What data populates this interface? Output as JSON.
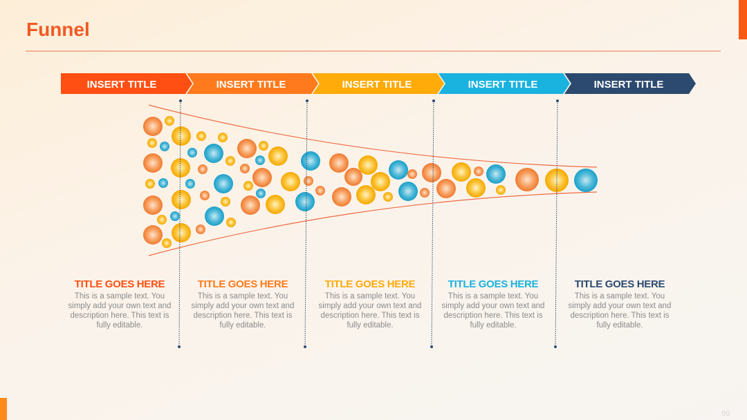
{
  "header": {
    "title": "Funnel"
  },
  "steps": [
    {
      "label": "INSERT TITLE",
      "color": "#ff4f12"
    },
    {
      "label": "INSERT TITLE",
      "color": "#ff7a1c"
    },
    {
      "label": "INSERT TITLE",
      "color": "#ffab0a"
    },
    {
      "label": "INSERT TITLE",
      "color": "#1ab2df"
    },
    {
      "label": "INSERT TITLE",
      "color": "#2c4a6f"
    }
  ],
  "columns": [
    {
      "title": "TITLE GOES HERE",
      "text": "This is a sample text. You simply add your own text and description here. This text is fully editable."
    },
    {
      "title": "TITLE GOES HERE",
      "text": "This is a sample text. You simply add your own text and description here. This text is fully editable."
    },
    {
      "title": "TITLE GOES HERE",
      "text": "This is a sample text. You simply add your own text and description here. This text is fully editable."
    },
    {
      "title": "TITLE GOES HERE",
      "text": "This is a sample text. You simply add your own text and description here. This text is fully editable."
    },
    {
      "title": "TITLE GOES HERE",
      "text": "This is a sample text. You simply add your own text and description here. This text is fully editable."
    }
  ],
  "footer": {
    "page_number": "90"
  }
}
